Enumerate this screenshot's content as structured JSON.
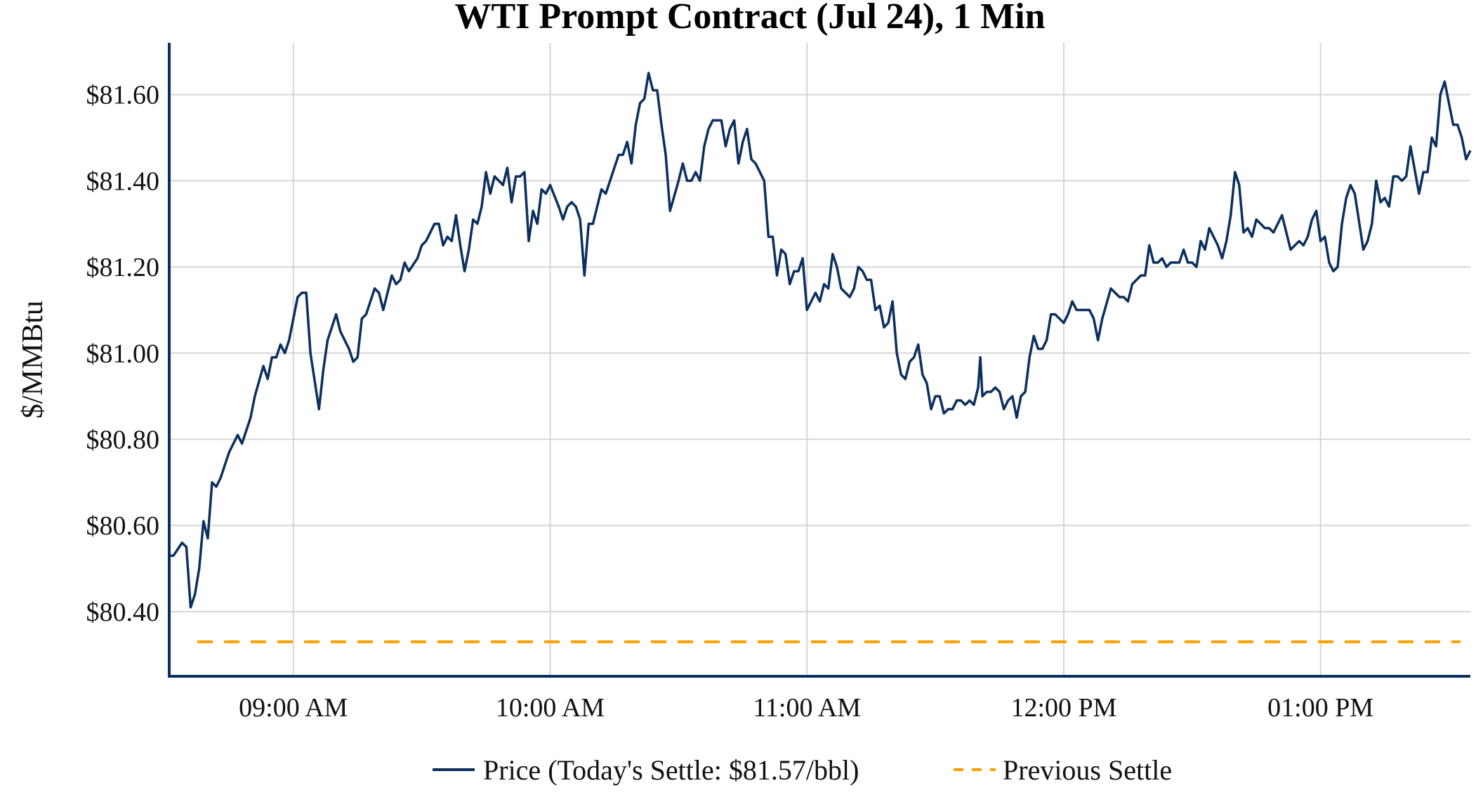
{
  "chart_data": {
    "type": "line",
    "title": "WTI Prompt Contract (Jul 24), 1 Min",
    "xlabel": "",
    "ylabel": "$/MMBtu",
    "x_units": "minutes after 08:30",
    "xlim": [
      1,
      305
    ],
    "ylim": [
      80.25,
      81.72
    ],
    "grid": true,
    "legend_position": "bottom-center",
    "x_ticks": [
      {
        "value": 30,
        "label": "09:00 AM"
      },
      {
        "value": 90,
        "label": "10:00 AM"
      },
      {
        "value": 150,
        "label": "11:00 AM"
      },
      {
        "value": 210,
        "label": "12:00 PM"
      },
      {
        "value": 270,
        "label": "01:00 PM"
      }
    ],
    "y_ticks": [
      {
        "value": 80.4,
        "label": "$80.40"
      },
      {
        "value": 80.6,
        "label": "$80.60"
      },
      {
        "value": 80.8,
        "label": "$80.80"
      },
      {
        "value": 81.0,
        "label": "$81.00"
      },
      {
        "value": 81.2,
        "label": "$81.20"
      },
      {
        "value": 81.4,
        "label": "$81.40"
      },
      {
        "value": 81.6,
        "label": "$81.60"
      }
    ],
    "series": [
      {
        "name": "Price (Today's Settle: $81.57/bbl)",
        "color": "#0b2f5e",
        "style": "solid",
        "points": [
          [
            1,
            80.53
          ],
          [
            2,
            80.53
          ],
          [
            4,
            80.56
          ],
          [
            5,
            80.55
          ],
          [
            6,
            80.41
          ],
          [
            7,
            80.44
          ],
          [
            8,
            80.5
          ],
          [
            9,
            80.61
          ],
          [
            10,
            80.57
          ],
          [
            11,
            80.7
          ],
          [
            12,
            80.69
          ],
          [
            13,
            80.71
          ],
          [
            15,
            80.77
          ],
          [
            17,
            80.81
          ],
          [
            18,
            80.79
          ],
          [
            20,
            80.85
          ],
          [
            21,
            80.9
          ],
          [
            23,
            80.97
          ],
          [
            24,
            80.94
          ],
          [
            25,
            80.99
          ],
          [
            26,
            80.99
          ],
          [
            27,
            81.02
          ],
          [
            28,
            81.0
          ],
          [
            29,
            81.03
          ],
          [
            31,
            81.13
          ],
          [
            32,
            81.14
          ],
          [
            33,
            81.14
          ],
          [
            34,
            81.0
          ],
          [
            36,
            80.87
          ],
          [
            37,
            80.96
          ],
          [
            38,
            81.03
          ],
          [
            40,
            81.09
          ],
          [
            41,
            81.05
          ],
          [
            43,
            81.01
          ],
          [
            44,
            80.98
          ],
          [
            45,
            80.99
          ],
          [
            46,
            81.08
          ],
          [
            47,
            81.09
          ],
          [
            49,
            81.15
          ],
          [
            50,
            81.14
          ],
          [
            51,
            81.1
          ],
          [
            52,
            81.14
          ],
          [
            53,
            81.18
          ],
          [
            54,
            81.16
          ],
          [
            55,
            81.17
          ],
          [
            56,
            81.21
          ],
          [
            57,
            81.19
          ],
          [
            59,
            81.22
          ],
          [
            60,
            81.25
          ],
          [
            61,
            81.26
          ],
          [
            63,
            81.3
          ],
          [
            64,
            81.3
          ],
          [
            65,
            81.25
          ],
          [
            66,
            81.27
          ],
          [
            67,
            81.26
          ],
          [
            68,
            81.32
          ],
          [
            69,
            81.25
          ],
          [
            70,
            81.19
          ],
          [
            71,
            81.24
          ],
          [
            72,
            81.31
          ],
          [
            73,
            81.3
          ],
          [
            74,
            81.34
          ],
          [
            75,
            81.42
          ],
          [
            76,
            81.37
          ],
          [
            77,
            81.41
          ],
          [
            79,
            81.39
          ],
          [
            80,
            81.43
          ],
          [
            81,
            81.35
          ],
          [
            82,
            81.41
          ],
          [
            83,
            81.41
          ],
          [
            84,
            81.42
          ],
          [
            85,
            81.26
          ],
          [
            86,
            81.33
          ],
          [
            87,
            81.3
          ],
          [
            88,
            81.38
          ],
          [
            89,
            81.37
          ],
          [
            90,
            81.39
          ],
          [
            92,
            81.34
          ],
          [
            93,
            81.31
          ],
          [
            94,
            81.34
          ],
          [
            95,
            81.35
          ],
          [
            96,
            81.34
          ],
          [
            97,
            81.31
          ],
          [
            98,
            81.18
          ],
          [
            99,
            81.3
          ],
          [
            100,
            81.3
          ],
          [
            101,
            81.34
          ],
          [
            102,
            81.38
          ],
          [
            103,
            81.37
          ],
          [
            104,
            81.4
          ],
          [
            106,
            81.46
          ],
          [
            107,
            81.46
          ],
          [
            108,
            81.49
          ],
          [
            109,
            81.44
          ],
          [
            110,
            81.53
          ],
          [
            111,
            81.58
          ],
          [
            112,
            81.59
          ],
          [
            113,
            81.65
          ],
          [
            114,
            81.61
          ],
          [
            115,
            81.61
          ],
          [
            116,
            81.53
          ],
          [
            117,
            81.46
          ],
          [
            118,
            81.33
          ],
          [
            120,
            81.4
          ],
          [
            121,
            81.44
          ],
          [
            122,
            81.4
          ],
          [
            123,
            81.4
          ],
          [
            124,
            81.42
          ],
          [
            125,
            81.4
          ],
          [
            126,
            81.48
          ],
          [
            127,
            81.52
          ],
          [
            128,
            81.54
          ],
          [
            130,
            81.54
          ],
          [
            131,
            81.48
          ],
          [
            132,
            81.52
          ],
          [
            133,
            81.54
          ],
          [
            134,
            81.44
          ],
          [
            135,
            81.49
          ],
          [
            136,
            81.52
          ],
          [
            137,
            81.45
          ],
          [
            138,
            81.44
          ],
          [
            140,
            81.4
          ],
          [
            141,
            81.27
          ],
          [
            142,
            81.27
          ],
          [
            143,
            81.18
          ],
          [
            144,
            81.24
          ],
          [
            145,
            81.23
          ],
          [
            146,
            81.16
          ],
          [
            147,
            81.19
          ],
          [
            148,
            81.19
          ],
          [
            149,
            81.22
          ],
          [
            150,
            81.1
          ],
          [
            152,
            81.14
          ],
          [
            153,
            81.12
          ],
          [
            154,
            81.16
          ],
          [
            155,
            81.15
          ],
          [
            156,
            81.23
          ],
          [
            157,
            81.2
          ],
          [
            158,
            81.15
          ],
          [
            159,
            81.14
          ],
          [
            160,
            81.13
          ],
          [
            161,
            81.15
          ],
          [
            162,
            81.2
          ],
          [
            163,
            81.19
          ],
          [
            164,
            81.17
          ],
          [
            165,
            81.17
          ],
          [
            166,
            81.1
          ],
          [
            167,
            81.11
          ],
          [
            168,
            81.06
          ],
          [
            169,
            81.07
          ],
          [
            170,
            81.12
          ],
          [
            171,
            81.0
          ],
          [
            172,
            80.95
          ],
          [
            173,
            80.94
          ],
          [
            174,
            80.98
          ],
          [
            175,
            80.99
          ],
          [
            176,
            81.02
          ],
          [
            177,
            80.95
          ],
          [
            178,
            80.93
          ],
          [
            179,
            80.87
          ],
          [
            180,
            80.9
          ],
          [
            181,
            80.9
          ],
          [
            182,
            80.86
          ],
          [
            183,
            80.87
          ],
          [
            184,
            80.87
          ],
          [
            185,
            80.89
          ],
          [
            186,
            80.89
          ],
          [
            187,
            80.88
          ],
          [
            188,
            80.89
          ],
          [
            189,
            80.88
          ],
          [
            190,
            80.92
          ],
          [
            190.5,
            80.99
          ],
          [
            191,
            80.9
          ],
          [
            192,
            80.91
          ],
          [
            193,
            80.91
          ],
          [
            194,
            80.92
          ],
          [
            195,
            80.91
          ],
          [
            196,
            80.87
          ],
          [
            197,
            80.89
          ],
          [
            198,
            80.9
          ],
          [
            199,
            80.85
          ],
          [
            200,
            80.9
          ],
          [
            201,
            80.91
          ],
          [
            202,
            80.99
          ],
          [
            203,
            81.04
          ],
          [
            204,
            81.01
          ],
          [
            205,
            81.01
          ],
          [
            206,
            81.03
          ],
          [
            207,
            81.09
          ],
          [
            208,
            81.09
          ],
          [
            209,
            81.08
          ],
          [
            210,
            81.07
          ],
          [
            211,
            81.09
          ],
          [
            212,
            81.12
          ],
          [
            213,
            81.1
          ],
          [
            216,
            81.1
          ],
          [
            217,
            81.08
          ],
          [
            218,
            81.03
          ],
          [
            219,
            81.08
          ],
          [
            221,
            81.15
          ],
          [
            222,
            81.14
          ],
          [
            223,
            81.13
          ],
          [
            224,
            81.13
          ],
          [
            225,
            81.12
          ],
          [
            226,
            81.16
          ],
          [
            227,
            81.17
          ],
          [
            228,
            81.18
          ],
          [
            229,
            81.18
          ],
          [
            230,
            81.25
          ],
          [
            231,
            81.21
          ],
          [
            232,
            81.21
          ],
          [
            233,
            81.22
          ],
          [
            234,
            81.2
          ],
          [
            235,
            81.21
          ],
          [
            237,
            81.21
          ],
          [
            238,
            81.24
          ],
          [
            239,
            81.21
          ],
          [
            240,
            81.21
          ],
          [
            241,
            81.2
          ],
          [
            242,
            81.26
          ],
          [
            243,
            81.24
          ],
          [
            244,
            81.29
          ],
          [
            246,
            81.25
          ],
          [
            247,
            81.22
          ],
          [
            248,
            81.26
          ],
          [
            249,
            81.32
          ],
          [
            250,
            81.42
          ],
          [
            251,
            81.39
          ],
          [
            252,
            81.28
          ],
          [
            253,
            81.29
          ],
          [
            254,
            81.27
          ],
          [
            255,
            81.31
          ],
          [
            256,
            81.3
          ],
          [
            257,
            81.29
          ],
          [
            258,
            81.29
          ],
          [
            259,
            81.28
          ],
          [
            261,
            81.32
          ],
          [
            263,
            81.24
          ],
          [
            264,
            81.25
          ],
          [
            265,
            81.26
          ],
          [
            266,
            81.25
          ],
          [
            267,
            81.27
          ],
          [
            268,
            81.31
          ],
          [
            269,
            81.33
          ],
          [
            270,
            81.26
          ],
          [
            271,
            81.27
          ],
          [
            272,
            81.21
          ],
          [
            273,
            81.19
          ],
          [
            274,
            81.2
          ],
          [
            275,
            81.3
          ],
          [
            276,
            81.36
          ],
          [
            277,
            81.39
          ],
          [
            278,
            81.37
          ],
          [
            280,
            81.24
          ],
          [
            281,
            81.26
          ],
          [
            282,
            81.3
          ],
          [
            283,
            81.4
          ],
          [
            284,
            81.35
          ],
          [
            285,
            81.36
          ],
          [
            286,
            81.34
          ],
          [
            287,
            81.41
          ],
          [
            288,
            81.41
          ],
          [
            289,
            81.4
          ],
          [
            290,
            81.41
          ],
          [
            291,
            81.48
          ],
          [
            293,
            81.37
          ],
          [
            294,
            81.42
          ],
          [
            295,
            81.42
          ],
          [
            296,
            81.5
          ],
          [
            297,
            81.48
          ],
          [
            298,
            81.6
          ],
          [
            299,
            81.63
          ],
          [
            301,
            81.53
          ],
          [
            302,
            81.53
          ],
          [
            303,
            81.5
          ],
          [
            304,
            81.45
          ],
          [
            305,
            81.47
          ]
        ]
      },
      {
        "name": "Previous Settle",
        "color": "#ffa000",
        "style": "dashed",
        "value": 80.33
      }
    ]
  }
}
